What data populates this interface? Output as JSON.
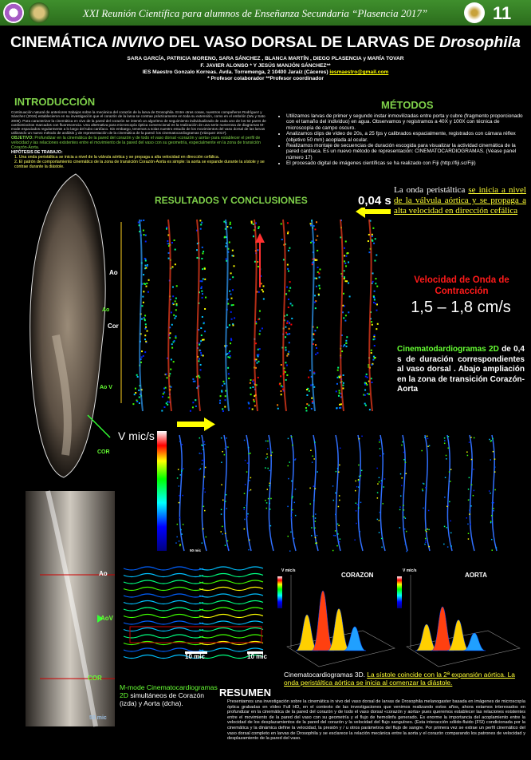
{
  "header": {
    "conference": "XXI Reunión Científica para alumnos de Enseñanza Secundaria “Plasencia 2017”",
    "number": "11"
  },
  "title": {
    "parts": [
      "CINEMÁTICA ",
      "INVIVO",
      " DEL VASO DORSAL DE LARVAS DE ",
      "Drosophila"
    ]
  },
  "authors": {
    "names": "SARA GARCÍA, PATRICIA MORENO, SARA SÁNCHEZ , BLANCA MARTÍN , DIEGO PLASENCIA y MARÍA TOVAR",
    "advisors": "F. JAVIER ALONSO *  Y  JESÚS MANJÓN SÁNCHEZ**",
    "school": "IES Maestro Gonzalo Korreas. Avda. Torremenga, 2   10400 Jaraíz (Cáceres)",
    "email": "iesmaestro@gmail.com",
    "roles": "* Profesor colaborador **Profesor coordinador"
  },
  "introduccion": {
    "heading": "INTRODUCCIÓN",
    "body": "Continuación natural de anteriores trabajos sobre la mecánica del corazón de la larva de Drosophila. Entre otras cosas, nuestros compañeros Rodríguez y Sánchez (2016) establecieron en su investigación que el corazón de la larva se contrae prácticamente en toda su extensión, como en el embrión (Wu y Sato 2008). Para caracterizar la cinemática en vivo de la pared del corazón se intentó un algoritmo de seguimiento individualizado de cada uno de los 52 pares de cardiomiocitos marcados con fluorescencia. Una alternativa para microscopía óptica convencional es la realización de una serie numerosa de diagramas M-mode espaciados regularmente a lo largo del tubo cardíaco. Sin embargo, tenemos a solas nuestro estudio de los movimientos del vaso dorsal de las larvas utilizando un nuevo método de análisis y de representación de la cinemática de la pared: los cinematocardiogramas (Vázquez 2017).",
    "objetivo_label": "OBJETIVO:",
    "objetivo": "Profundizar en la cinemática de la pared del corazón y de todo el vaso dorsal «corazón y aorta» para establecer el perfil de velocidad y las relaciones existentes entre el movimiento de la pared del vaso con su geometría, especialmente en la zona de transición Corazón-Aorta.",
    "hipotesis_label": "HIPÓTESIS DE TRABAJO:",
    "hipotesis": [
      "1.  Una onda peristáltica se inicia a nivel de la válvula aórtica y se propaga a alta velocidad en dirección cefálica.",
      "2.  El patrón de comportamiento cinemático de la zona de transición Corazón-Aorta es simple: la aorta se expande durante la sístole y se contrae durante la diástole."
    ]
  },
  "metodos": {
    "heading": "MÉTODOS",
    "items": [
      "Utilizamos larvas de primer y segundo instar inmovilizadas entre porta y cubre (fragmento proporcionado con el tamaño del individuo) en agua. Observamos y registramos a 40X y 100X con técnica de microscopía de campo oscuro.",
      "Analizamos clips de vídeo de 20s, a 25 fps y calibrados espacialmente, registrados con cámara réflex (objetivo 50 mm) acoplada al ocular.",
      "Realizamos montaje de secuencias de duración escogida para visualizar la actividad cinemática de la pared cardíaca. Es un nuevo método de representación: CINEMATOCARDIOGRAMAS. (Véase panel número 17)",
      "El procesado digital de imágenes científicas se ha realizado con Fiji (http://fiji.sc/Fiji)"
    ]
  },
  "resultados": {
    "heading": "RESULTADOS  Y CONCLUSIONES",
    "time_scale": "0,04 s",
    "onda": [
      "La onda peristáltica ",
      "se inicia a nivel de la válvula aórtica y se propaga a alta velocidad en dirección cefálica"
    ],
    "velocidad_label": "Velocidad de Onda de Contracción",
    "velocidad": "1,5 – 1,8 cm/s",
    "cinemato2d": [
      "Cinematodardiogramas 2D",
      " de 0,4 s de duración correspondientes al vaso dorsal . Abajo ampliación en la zona de transición Corazón-Aorta"
    ],
    "larva_labels": [
      "Ao",
      "Cor",
      "Ao",
      "Ao V",
      "COR"
    ],
    "colorbar_label": "V mic/s",
    "scale_50": "50 mic",
    "zoom_labels": [
      "Ao",
      "AoV",
      "COR"
    ],
    "scale_10": "10 mic",
    "plot3d_titles": [
      "CORAZON",
      "AORTA"
    ],
    "plot3d_axis": "V mic/s",
    "mmode_caption": [
      "M-mode Cinematocardiogramas 2D",
      " simultáneos de Corazón (izda) y Aorta (dcha)."
    ],
    "caption3d": [
      "Cinematocardiogramas 3D. ",
      "La sístole coincide con la 2ª expansión aórtica.  La  onda peristáltica aórtica se inicia al comenzar la diástole."
    ]
  },
  "resumen": {
    "heading": "RESUMEN",
    "body": "Presentamos una investigación sobre la cinemática in vivo del vaso dorsal de larvas de Drosophila melanogaster basada en imágenes de microscopía óptica grabadas en vídeo Full HD, en el contexto de las investigaciones que venimos realizando estos años, ahora estamos interesados en profundizar en la cinemática de la pared del corazón y de todo el vaso dorsal «corazón y aorta» pues queremos establecer las relaciones existentes entre el movimiento de la pared del vaso con su geometría y el flujo de hemolinfa generado. Es enorme la importancia del acoplamiento entre la velocidad de los desplazamientos de la pared del corazón y la velocidad del flujo sanguíneo. (Esta interacción sólido-fluido (FSI) condicionada por la cinemática y la dinámica define la velocidad, la presión y / u otros parámetros del flujo de sangre. Por primera vez se extrae un perfil cinemático del vaso dorsal completo en larvas de Drosophila y se esclarece la relación mecánica entre la aorta y el corazón comparando los patrones de velocidad y desplazamiento de la pared del vaso."
  }
}
